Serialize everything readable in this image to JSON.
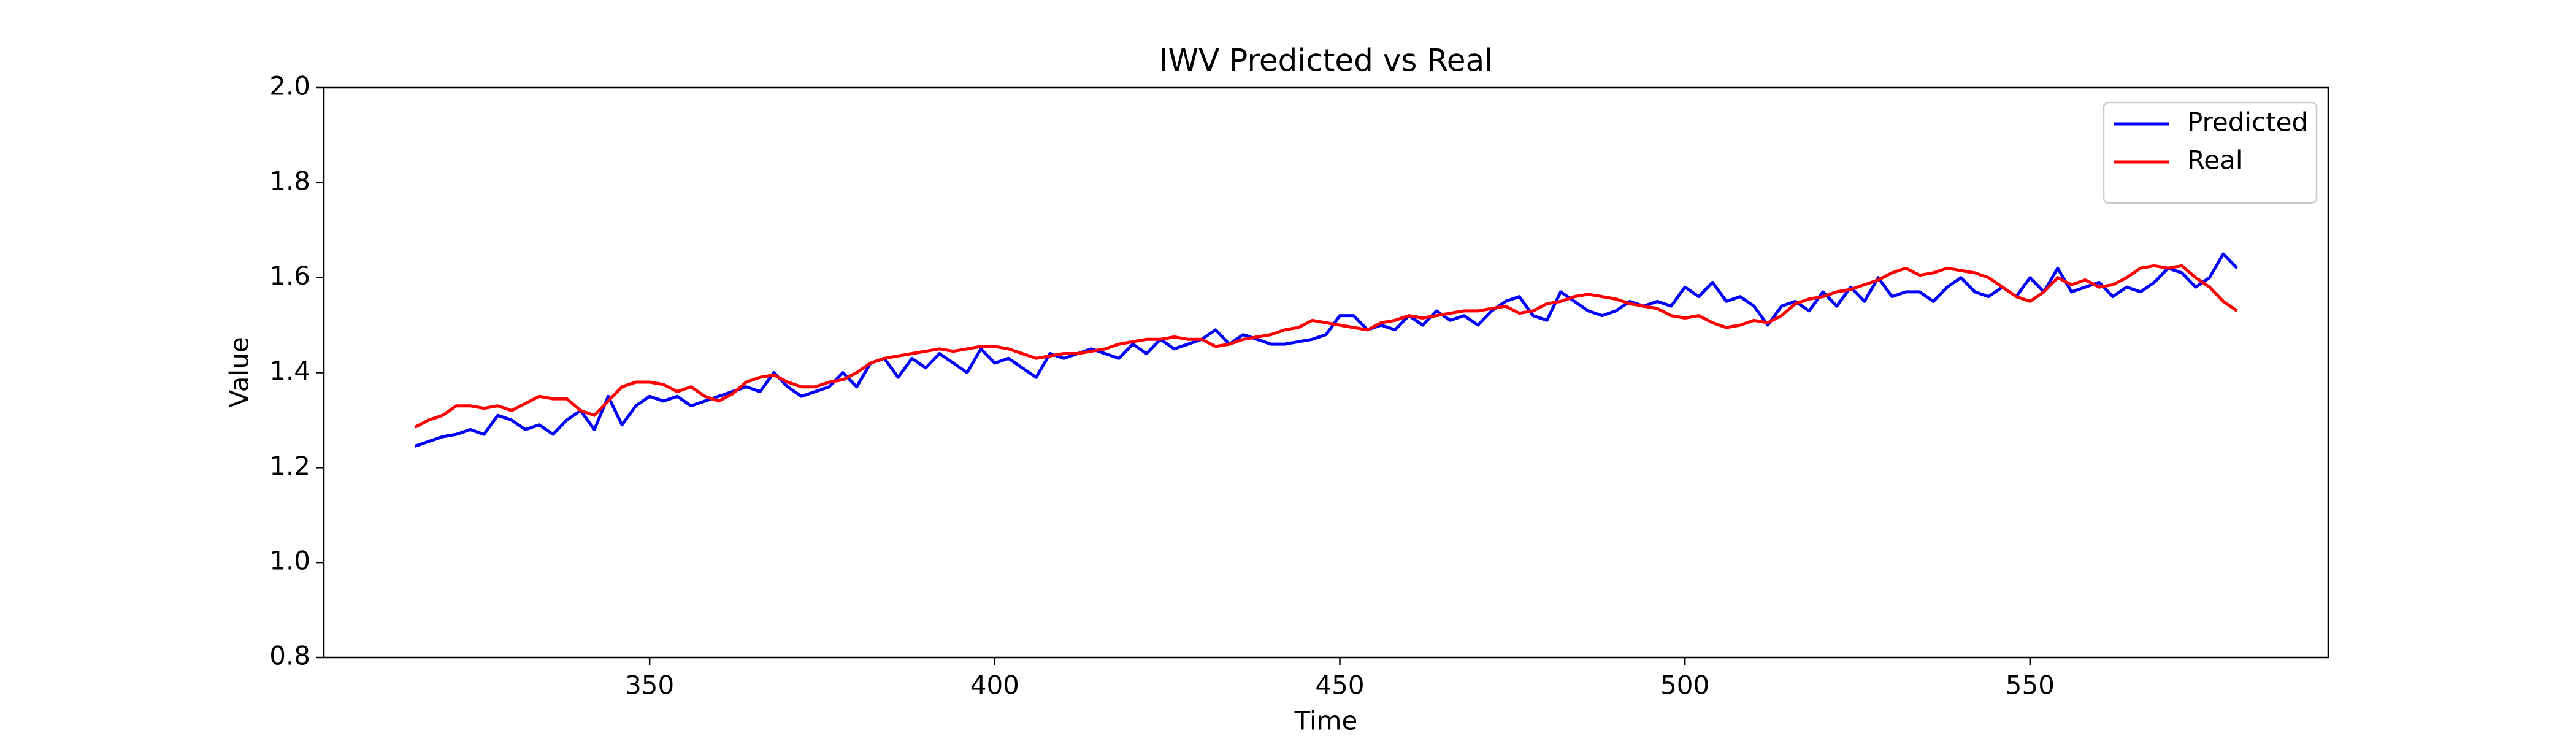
{
  "chart_data": {
    "type": "line",
    "title": "IWV Predicted vs Real",
    "xlabel": "Time",
    "ylabel": "Value",
    "x": [
      316,
      318,
      320,
      322,
      324,
      326,
      328,
      330,
      332,
      334,
      336,
      338,
      340,
      342,
      344,
      346,
      348,
      350,
      352,
      354,
      356,
      358,
      360,
      362,
      364,
      366,
      368,
      370,
      372,
      374,
      376,
      378,
      380,
      382,
      384,
      386,
      388,
      390,
      392,
      394,
      396,
      398,
      400,
      402,
      404,
      406,
      408,
      410,
      412,
      414,
      416,
      418,
      420,
      422,
      424,
      426,
      428,
      430,
      432,
      434,
      436,
      438,
      440,
      442,
      444,
      446,
      448,
      450,
      452,
      454,
      456,
      458,
      460,
      462,
      464,
      466,
      468,
      470,
      472,
      474,
      476,
      478,
      480,
      482,
      484,
      486,
      488,
      490,
      492,
      494,
      496,
      498,
      500,
      502,
      504,
      506,
      508,
      510,
      512,
      514,
      516,
      518,
      520,
      522,
      524,
      526,
      528,
      530,
      532,
      534,
      536,
      538,
      540,
      542,
      544,
      546,
      548,
      550,
      552,
      554,
      556,
      558,
      560,
      562,
      564,
      566,
      568,
      570,
      572,
      574,
      576,
      578,
      580
    ],
    "series": [
      {
        "name": "Predicted",
        "color": "#0000ff",
        "values": [
          1.245,
          1.255,
          1.265,
          1.27,
          1.28,
          1.27,
          1.31,
          1.3,
          1.28,
          1.29,
          1.27,
          1.3,
          1.32,
          1.28,
          1.35,
          1.29,
          1.33,
          1.35,
          1.34,
          1.35,
          1.33,
          1.34,
          1.35,
          1.36,
          1.37,
          1.36,
          1.4,
          1.37,
          1.35,
          1.36,
          1.37,
          1.4,
          1.37,
          1.42,
          1.43,
          1.39,
          1.43,
          1.41,
          1.44,
          1.42,
          1.4,
          1.45,
          1.42,
          1.43,
          1.41,
          1.39,
          1.44,
          1.43,
          1.44,
          1.45,
          1.44,
          1.43,
          1.46,
          1.44,
          1.47,
          1.45,
          1.46,
          1.47,
          1.49,
          1.46,
          1.48,
          1.47,
          1.46,
          1.46,
          1.465,
          1.47,
          1.48,
          1.52,
          1.52,
          1.49,
          1.5,
          1.49,
          1.52,
          1.5,
          1.53,
          1.51,
          1.52,
          1.5,
          1.53,
          1.55,
          1.56,
          1.52,
          1.51,
          1.57,
          1.55,
          1.53,
          1.52,
          1.53,
          1.55,
          1.54,
          1.55,
          1.54,
          1.58,
          1.56,
          1.59,
          1.55,
          1.56,
          1.54,
          1.5,
          1.54,
          1.55,
          1.53,
          1.57,
          1.54,
          1.58,
          1.55,
          1.6,
          1.56,
          1.57,
          1.57,
          1.55,
          1.58,
          1.6,
          1.57,
          1.56,
          1.58,
          1.56,
          1.6,
          1.57,
          1.62,
          1.57,
          1.58,
          1.59,
          1.56,
          1.58,
          1.57,
          1.59,
          1.62,
          1.61,
          1.58,
          1.6,
          1.65,
          1.62
        ]
      },
      {
        "name": "Real",
        "color": "#ff0000",
        "values": [
          1.285,
          1.3,
          1.31,
          1.33,
          1.33,
          1.325,
          1.33,
          1.32,
          1.335,
          1.35,
          1.345,
          1.345,
          1.32,
          1.31,
          1.34,
          1.37,
          1.38,
          1.38,
          1.375,
          1.36,
          1.37,
          1.35,
          1.34,
          1.355,
          1.38,
          1.39,
          1.395,
          1.38,
          1.37,
          1.37,
          1.38,
          1.385,
          1.4,
          1.42,
          1.43,
          1.435,
          1.44,
          1.445,
          1.45,
          1.445,
          1.45,
          1.455,
          1.455,
          1.45,
          1.44,
          1.43,
          1.435,
          1.44,
          1.44,
          1.445,
          1.45,
          1.46,
          1.465,
          1.47,
          1.47,
          1.475,
          1.47,
          1.47,
          1.455,
          1.46,
          1.47,
          1.475,
          1.48,
          1.49,
          1.495,
          1.51,
          1.505,
          1.5,
          1.495,
          1.49,
          1.505,
          1.51,
          1.52,
          1.515,
          1.52,
          1.525,
          1.53,
          1.53,
          1.535,
          1.54,
          1.525,
          1.53,
          1.545,
          1.55,
          1.56,
          1.565,
          1.56,
          1.555,
          1.545,
          1.54,
          1.535,
          1.52,
          1.515,
          1.52,
          1.505,
          1.495,
          1.5,
          1.51,
          1.505,
          1.52,
          1.545,
          1.555,
          1.56,
          1.57,
          1.575,
          1.585,
          1.595,
          1.61,
          1.62,
          1.605,
          1.61,
          1.62,
          1.615,
          1.61,
          1.6,
          1.58,
          1.56,
          1.55,
          1.57,
          1.6,
          1.585,
          1.595,
          1.58,
          1.585,
          1.6,
          1.62,
          1.625,
          1.62,
          1.625,
          1.6,
          1.58,
          1.55,
          1.53
        ]
      }
    ],
    "xlim": [
      302.8,
      593.2
    ],
    "xticks": [
      350,
      400,
      450,
      500,
      550
    ],
    "ylim": [
      0.8,
      2.0
    ],
    "yticks": [
      0.8,
      {
        "value": 1,
        "label": "1.0"
      },
      1.2,
      1.4,
      1.6,
      1.8,
      {
        "value": 2,
        "label": "2.0"
      }
    ],
    "legend": "upper right"
  }
}
